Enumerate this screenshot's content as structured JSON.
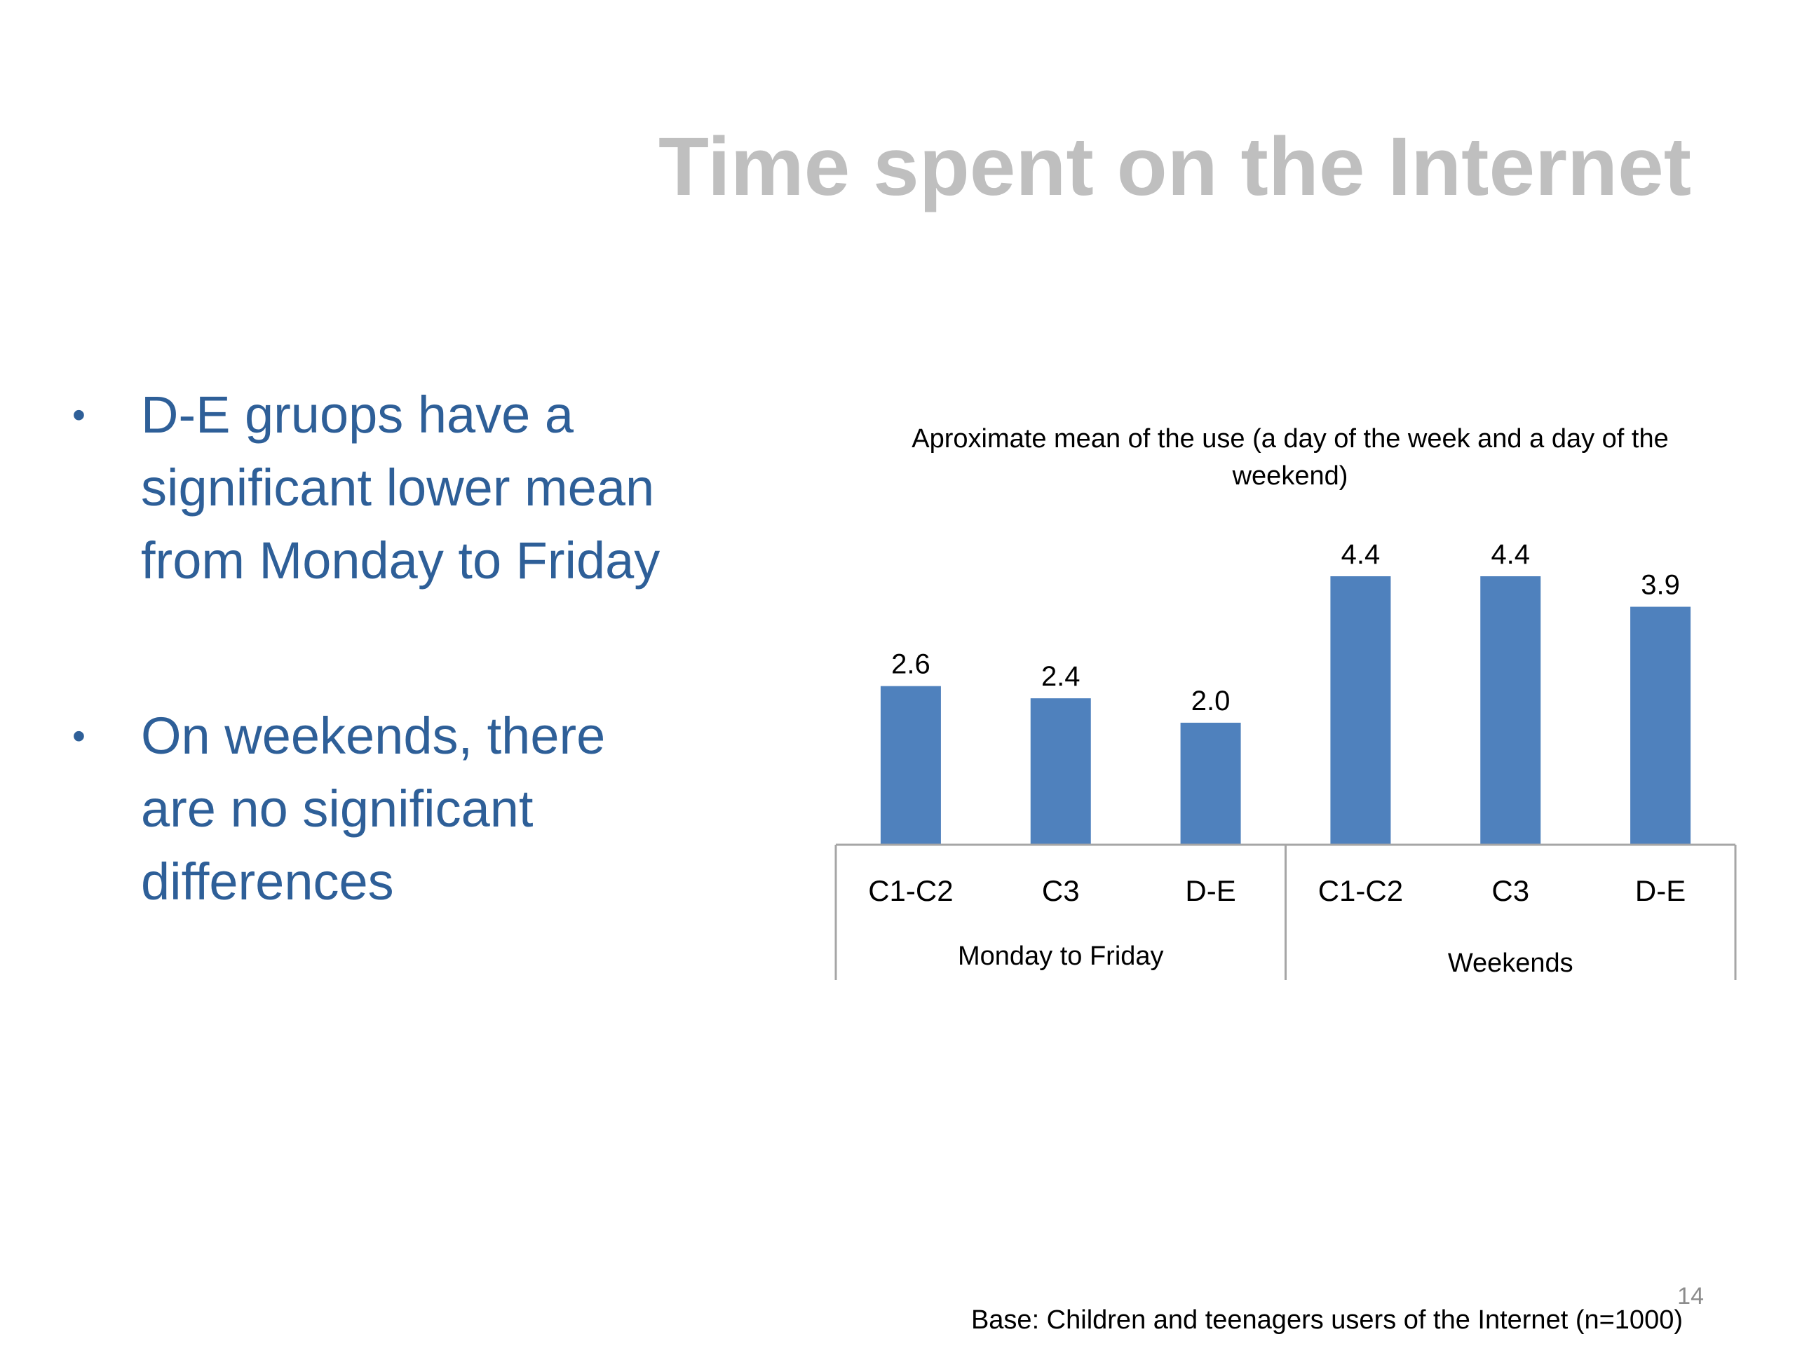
{
  "slide": {
    "title": "Time spent on the Internet",
    "bullets": [
      {
        "text": "D-E gruops have a significant lower mean from Monday to Friday"
      },
      {
        "text": "On weekends, there are no significant differences"
      }
    ],
    "bullet_glyph": "•",
    "base_note": "Base: Children and teenagers users of the Internet (n=1000)",
    "page_number": "14",
    "colors": {
      "title": "#bfbfbf",
      "bullet_text": "#2e5f98",
      "bar": "#4f81bd",
      "axis": "#a6a6a6"
    }
  },
  "chart_data": {
    "type": "bar",
    "title": "Aproximate mean of the use (a day of the week and a day of the weekend)",
    "categories": [
      "C1-C2",
      "C3",
      "D-E",
      "C1-C2",
      "C3",
      "D-E"
    ],
    "groups": [
      {
        "label": "Monday to Friday",
        "categories": [
          "C1-C2",
          "C3",
          "D-E"
        ]
      },
      {
        "label": "Weekends",
        "categories": [
          "C1-C2",
          "C3",
          "D-E"
        ]
      }
    ],
    "values": [
      2.6,
      2.4,
      2.0,
      4.4,
      4.4,
      3.9
    ],
    "value_labels": [
      "2.6",
      "2.4",
      "2.0",
      "4.4",
      "4.4",
      "3.9"
    ],
    "ylim": [
      0,
      4.4
    ],
    "xlabel": "",
    "ylabel": "",
    "grid": false,
    "legend": "none"
  }
}
